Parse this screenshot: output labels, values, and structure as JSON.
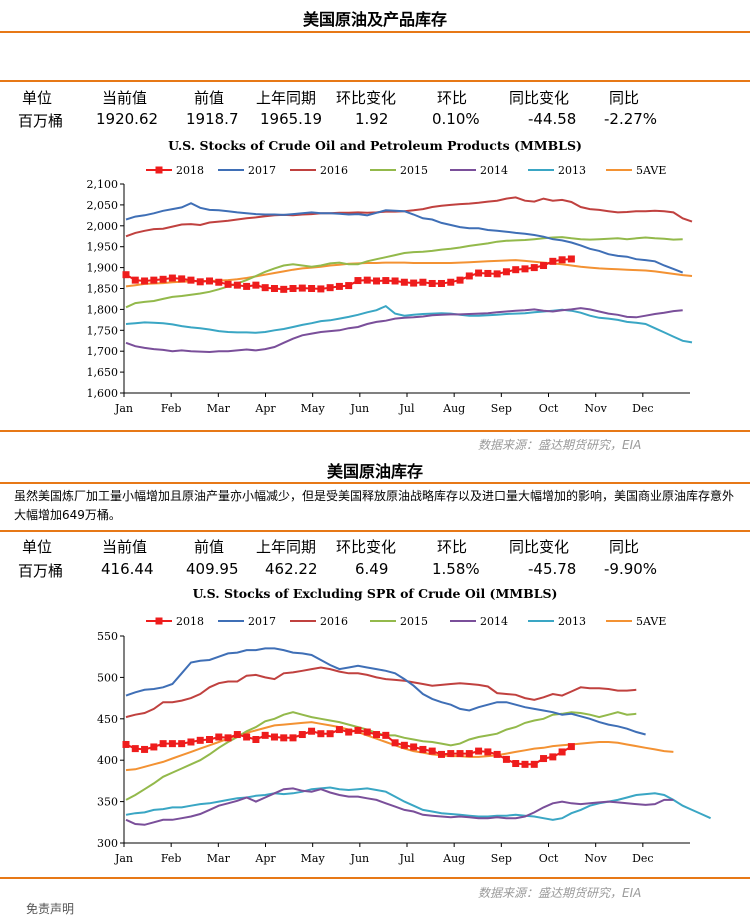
{
  "section1": {
    "title": "美国原油及产品库存",
    "headers": [
      "单位",
      "当前值",
      "前值",
      "上年同期",
      "环比变化",
      "环比",
      "同比变化",
      "同比"
    ],
    "values": [
      "百万桶",
      "1920.62",
      "1918.7",
      "1965.19",
      "1.92",
      "0.10%",
      "-44.58",
      "-2.27%"
    ],
    "source": "数据来源：盛达期货研究，EIA"
  },
  "section2": {
    "title": "美国原油库存",
    "description": "虽然美国炼厂加工量小幅增加且原油产量亦小幅减少，但是受美国释放原油战略库存以及进口量大幅增加的影响，美国商业原油库存意外大幅增加649万桶。",
    "headers": [
      "单位",
      "当前值",
      "前值",
      "上年同期",
      "环比变化",
      "环比",
      "同比变化",
      "同比"
    ],
    "values": [
      "百万桶",
      "416.44",
      "409.95",
      "462.22",
      "6.49",
      "1.58%",
      "-45.78",
      "-9.90%"
    ],
    "source": "数据来源：盛达期货研究，EIA"
  },
  "footer_text": "免责声明",
  "colors": {
    "accent": "#e77817",
    "2018": "#ee1c1c",
    "2017": "#3f6fb6",
    "2016": "#c0413f",
    "2015": "#93b94b",
    "2014": "#7a4f9a",
    "2013": "#3aa6c4",
    "5AVE": "#f39233"
  },
  "chart_data": [
    {
      "type": "line",
      "title": "U.S.  Stocks of Crude Oil and Petroleum Products  (MMBLS)",
      "ylim": [
        1600,
        2100
      ],
      "yticks": [
        "1,600",
        "1,650",
        "1,700",
        "1,750",
        "1,800",
        "1,850",
        "1,900",
        "1,950",
        "2,000",
        "2,050",
        "2,100"
      ],
      "months": [
        "Jan",
        "Feb",
        "Mar",
        "Apr",
        "May",
        "Jun",
        "Jul",
        "Aug",
        "Sep",
        "Oct",
        "Nov",
        "Dec"
      ],
      "grid": false,
      "legend_position": "top",
      "series": [
        {
          "name": "2018",
          "marker": "square",
          "values": [
            1883,
            1870,
            1868,
            1870,
            1872,
            1875,
            1873,
            1870,
            1866,
            1868,
            1865,
            1860,
            1858,
            1855,
            1858,
            1852,
            1850,
            1848,
            1850,
            1851,
            1850,
            1849,
            1852,
            1855,
            1857,
            1869,
            1870,
            1868,
            1869,
            1868,
            1865,
            1863,
            1865,
            1862,
            1862,
            1865,
            1870,
            1880,
            1887,
            1886,
            1885,
            1890,
            1895,
            1897,
            1900,
            1905,
            1915,
            1918.7,
            1920.62
          ]
        },
        {
          "name": "2017",
          "values": [
            2015,
            2022,
            2025,
            2030,
            2036,
            2040,
            2044,
            2054,
            2043,
            2038,
            2037,
            2035,
            2032,
            2030,
            2028,
            2027,
            2027,
            2026,
            2028,
            2030,
            2032,
            2030,
            2030,
            2029,
            2027,
            2028,
            2025,
            2031,
            2037,
            2036,
            2035,
            2027,
            2018,
            2015,
            2007,
            2002,
            1997,
            1994,
            1994,
            1990,
            1988,
            1986,
            1983,
            1981,
            1978,
            1974,
            1968,
            1965,
            1960,
            1953,
            1945,
            1940,
            1932,
            1928,
            1926,
            1920,
            1918,
            1915,
            1905,
            1897,
            1888
          ]
        },
        {
          "name": "2016",
          "values": [
            1975,
            1983,
            1988,
            1992,
            1993,
            1998,
            2003,
            2004,
            2002,
            2008,
            2010,
            2012,
            2015,
            2018,
            2020,
            2023,
            2025,
            2026,
            2025,
            2027,
            2028,
            2030,
            2030,
            2031,
            2031,
            2032,
            2031,
            2032,
            2034,
            2034,
            2035,
            2037,
            2040,
            2045,
            2048,
            2050,
            2052,
            2053,
            2055,
            2058,
            2060,
            2065,
            2068,
            2060,
            2058,
            2065,
            2060,
            2062,
            2057,
            2045,
            2040,
            2038,
            2035,
            2032,
            2033,
            2035,
            2035,
            2036,
            2035,
            2032,
            2018,
            2010
          ]
        },
        {
          "name": "2015",
          "values": [
            1805,
            1815,
            1818,
            1820,
            1825,
            1830,
            1832,
            1835,
            1838,
            1842,
            1848,
            1855,
            1862,
            1870,
            1880,
            1890,
            1898,
            1905,
            1908,
            1905,
            1902,
            1905,
            1910,
            1912,
            1908,
            1908,
            1915,
            1920,
            1925,
            1930,
            1935,
            1937,
            1938,
            1940,
            1943,
            1945,
            1948,
            1952,
            1955,
            1958,
            1962,
            1964,
            1965,
            1966,
            1968,
            1970,
            1972,
            1973,
            1970,
            1968,
            1967,
            1968,
            1969,
            1970,
            1968,
            1970,
            1972,
            1970,
            1969,
            1967,
            1968
          ]
        },
        {
          "name": "2014",
          "values": [
            1720,
            1712,
            1708,
            1705,
            1703,
            1700,
            1702,
            1700,
            1699,
            1698,
            1700,
            1700,
            1702,
            1704,
            1702,
            1705,
            1710,
            1720,
            1730,
            1738,
            1742,
            1746,
            1748,
            1750,
            1755,
            1758,
            1765,
            1770,
            1773,
            1778,
            1780,
            1781,
            1783,
            1786,
            1787,
            1788,
            1788,
            1789,
            1790,
            1791,
            1793,
            1795,
            1797,
            1798,
            1800,
            1797,
            1795,
            1798,
            1800,
            1803,
            1800,
            1795,
            1790,
            1787,
            1782,
            1781,
            1785,
            1789,
            1792,
            1796,
            1798
          ]
        },
        {
          "name": "2013",
          "values": [
            1765,
            1767,
            1769,
            1768,
            1767,
            1764,
            1760,
            1757,
            1755,
            1752,
            1748,
            1746,
            1745,
            1745,
            1744,
            1746,
            1750,
            1753,
            1758,
            1763,
            1767,
            1772,
            1774,
            1778,
            1782,
            1787,
            1793,
            1798,
            1808,
            1790,
            1785,
            1787,
            1789,
            1790,
            1791,
            1790,
            1787,
            1785,
            1785,
            1786,
            1787,
            1789,
            1790,
            1791,
            1793,
            1795,
            1797,
            1799,
            1797,
            1792,
            1785,
            1780,
            1778,
            1775,
            1770,
            1768,
            1765,
            1755,
            1745,
            1735,
            1725,
            1721
          ]
        },
        {
          "name": "5AVE",
          "values": [
            1855,
            1858,
            1861,
            1862,
            1863,
            1865,
            1866,
            1867,
            1868,
            1868,
            1869,
            1870,
            1872,
            1875,
            1879,
            1883,
            1887,
            1891,
            1895,
            1898,
            1900,
            1902,
            1905,
            1907,
            1909,
            1910,
            1911,
            1911,
            1912,
            1912,
            1912,
            1911,
            1911,
            1911,
            1911,
            1911,
            1912,
            1913,
            1914,
            1915,
            1916,
            1917,
            1918,
            1916,
            1914,
            1912,
            1910,
            1908,
            1905,
            1902,
            1900,
            1898,
            1897,
            1896,
            1895,
            1894,
            1893,
            1891,
            1888,
            1885,
            1882,
            1880
          ]
        }
      ]
    },
    {
      "type": "line",
      "title": "U.S.  Stocks of Excluding SPR of Crude Oil (MMBLS)",
      "ylim": [
        300,
        550
      ],
      "yticks": [
        "300",
        "350",
        "400",
        "450",
        "500",
        "550"
      ],
      "months": [
        "Jan",
        "Feb",
        "Mar",
        "Apr",
        "May",
        "Jun",
        "Jul",
        "Aug",
        "Sep",
        "Oct",
        "Nov",
        "Dec"
      ],
      "grid": false,
      "legend_position": "top",
      "series": [
        {
          "name": "2018",
          "marker": "square",
          "values": [
            419,
            414,
            413,
            416,
            420,
            420,
            420,
            422,
            424,
            425,
            428,
            427,
            431,
            428,
            425,
            430,
            428,
            427,
            427,
            431,
            435,
            432,
            432,
            437,
            434,
            436,
            434,
            431,
            430,
            421,
            418,
            416,
            413,
            411,
            407,
            408,
            408,
            408,
            411,
            410,
            407,
            401,
            396,
            395,
            395,
            402,
            404,
            409.95,
            416.44
          ]
        },
        {
          "name": "2017",
          "values": [
            478,
            482,
            485,
            486,
            488,
            492,
            505,
            518,
            520,
            521,
            525,
            529,
            530,
            533,
            533,
            535,
            535,
            533,
            530,
            529,
            527,
            521,
            515,
            510,
            512,
            514,
            512,
            510,
            508,
            505,
            498,
            490,
            480,
            474,
            470,
            467,
            462,
            460,
            464,
            467,
            470,
            470,
            467,
            464,
            462,
            460,
            458,
            455,
            456,
            453,
            450,
            446,
            443,
            441,
            438,
            434,
            431
          ]
        },
        {
          "name": "2016",
          "values": [
            452,
            455,
            457,
            462,
            470,
            470,
            472,
            475,
            480,
            488,
            493,
            495,
            495,
            502,
            503,
            500,
            498,
            505,
            506,
            508,
            510,
            512,
            510,
            507,
            505,
            505,
            503,
            500,
            498,
            497,
            496,
            494,
            492,
            490,
            491,
            492,
            493,
            492,
            491,
            489,
            481,
            480,
            479,
            475,
            473,
            476,
            480,
            478,
            483,
            488,
            487,
            487,
            486,
            484,
            484,
            485
          ]
        },
        {
          "name": "2015",
          "values": [
            352,
            358,
            365,
            372,
            380,
            385,
            390,
            395,
            400,
            407,
            415,
            422,
            428,
            435,
            440,
            447,
            450,
            455,
            458,
            455,
            452,
            450,
            448,
            446,
            443,
            440,
            437,
            433,
            430,
            430,
            427,
            425,
            423,
            422,
            420,
            418,
            420,
            425,
            428,
            430,
            432,
            437,
            440,
            445,
            448,
            450,
            455,
            456,
            458,
            457,
            455,
            452,
            455,
            458,
            455,
            456
          ]
        },
        {
          "name": "2014",
          "values": [
            328,
            323,
            322,
            325,
            328,
            328,
            330,
            332,
            335,
            340,
            345,
            348,
            351,
            355,
            350,
            355,
            360,
            365,
            366,
            363,
            362,
            365,
            361,
            358,
            356,
            356,
            354,
            352,
            348,
            344,
            340,
            338,
            334,
            333,
            332,
            331,
            332,
            331,
            330,
            330,
            331,
            330,
            330,
            332,
            337,
            343,
            348,
            350,
            348,
            347,
            348,
            349,
            350,
            349,
            348,
            347,
            346,
            347,
            352,
            352
          ]
        },
        {
          "name": "2013",
          "values": [
            334,
            336,
            337,
            340,
            341,
            343,
            343,
            345,
            347,
            348,
            350,
            352,
            354,
            355,
            357,
            358,
            360,
            359,
            360,
            362,
            365,
            366,
            367,
            365,
            364,
            365,
            366,
            364,
            362,
            356,
            350,
            345,
            340,
            338,
            336,
            335,
            334,
            333,
            332,
            332,
            333,
            333,
            334,
            333,
            332,
            330,
            328,
            330,
            336,
            340,
            345,
            348,
            350,
            352,
            355,
            358,
            359,
            360,
            358,
            352,
            345,
            340,
            335,
            330
          ]
        },
        {
          "name": "5AVE",
          "values": [
            388,
            389,
            392,
            395,
            398,
            402,
            406,
            410,
            414,
            418,
            422,
            426,
            430,
            433,
            436,
            439,
            442,
            443,
            444,
            445,
            446,
            444,
            442,
            440,
            437,
            434,
            430,
            426,
            422,
            418,
            414,
            411,
            409,
            407,
            406,
            405,
            405,
            404,
            404,
            405,
            406,
            408,
            410,
            412,
            414,
            415,
            417,
            418,
            419,
            420,
            421,
            422,
            422,
            421,
            419,
            417,
            415,
            413,
            411,
            410
          ]
        }
      ]
    }
  ]
}
